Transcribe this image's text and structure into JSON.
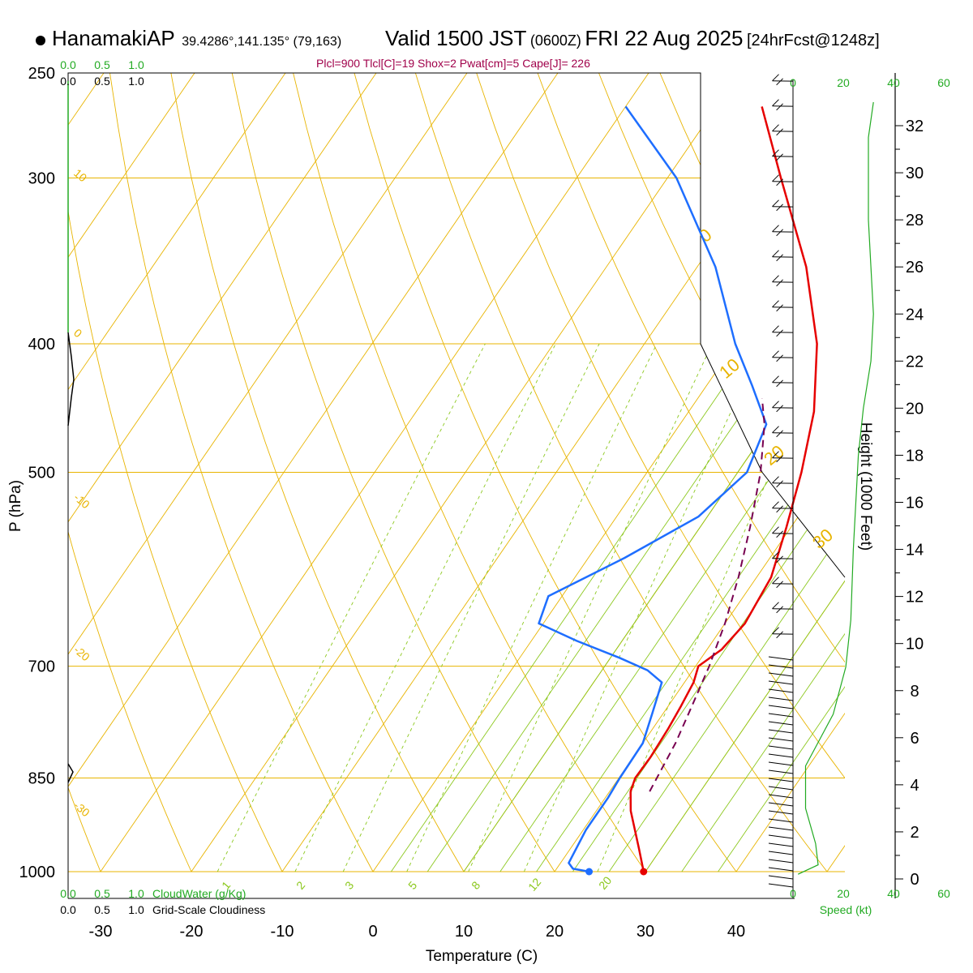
{
  "header": {
    "station": "HanamakiAP",
    "coords": "39.4286°,141.135° (79,163)",
    "valid": "Valid 1500 JST",
    "utc": "(0600Z)",
    "date": "FRI 22 Aug 2025",
    "forecast": "[24hrFcst@1248z]",
    "params": "Plcl=900 Tlcl[C]=19 Shox=2 Pwat[cm]=5 Cape[J]= 226"
  },
  "colors": {
    "isotherm": "#e8b400",
    "dry_adiabat": "#e8b400",
    "moist_adiabat": "#8cc81e",
    "mixing_ratio": "#8cc81e",
    "temperature": "#e60000",
    "dewpoint": "#1e6eff",
    "parcel": "#780050",
    "green_text": "#22aa22",
    "param_text": "#a0004a"
  },
  "chart_data": {
    "type": "skew-t",
    "xlabel": "Temperature (C)",
    "ylabel": "P (hPa)",
    "x_ticks": [
      -30,
      -20,
      -10,
      0,
      10,
      20,
      30,
      40
    ],
    "pressure_levels": [
      250,
      300,
      400,
      500,
      700,
      850,
      1000
    ],
    "temp_range_c": [
      -33,
      47
    ],
    "pressure_range_hpa": [
      250,
      1000
    ],
    "temperature": {
      "name": "Temperature",
      "points": [
        {
          "p": 1000,
          "t": 29.8
        },
        {
          "p": 960,
          "t": 27.5
        },
        {
          "p": 900,
          "t": 23.8
        },
        {
          "p": 870,
          "t": 22.3
        },
        {
          "p": 850,
          "t": 21.8
        },
        {
          "p": 820,
          "t": 21.9
        },
        {
          "p": 780,
          "t": 21.7
        },
        {
          "p": 750,
          "t": 21.4
        },
        {
          "p": 720,
          "t": 21.0
        },
        {
          "p": 700,
          "t": 20.3
        },
        {
          "p": 680,
          "t": 21.6
        },
        {
          "p": 650,
          "t": 22.2
        },
        {
          "p": 600,
          "t": 21.6
        },
        {
          "p": 550,
          "t": 19.5
        },
        {
          "p": 500,
          "t": 17.0
        },
        {
          "p": 450,
          "t": 13.8
        },
        {
          "p": 400,
          "t": 9.0
        },
        {
          "p": 350,
          "t": 2.0
        },
        {
          "p": 300,
          "t": -7.5
        },
        {
          "p": 265,
          "t": -15.0
        }
      ]
    },
    "dewpoint": {
      "name": "Dewpoint",
      "points": [
        {
          "p": 1000,
          "t": 23.8
        },
        {
          "p": 995,
          "t": 21.8
        },
        {
          "p": 985,
          "t": 20.9
        },
        {
          "p": 930,
          "t": 20.3
        },
        {
          "p": 880,
          "t": 20.3
        },
        {
          "p": 850,
          "t": 20.1
        },
        {
          "p": 800,
          "t": 20.0
        },
        {
          "p": 760,
          "t": 18.8
        },
        {
          "p": 720,
          "t": 17.5
        },
        {
          "p": 705,
          "t": 15.0
        },
        {
          "p": 690,
          "t": 11.0
        },
        {
          "p": 670,
          "t": 5.0
        },
        {
          "p": 650,
          "t": -0.5
        },
        {
          "p": 620,
          "t": -1.5
        },
        {
          "p": 580,
          "t": 4.0
        },
        {
          "p": 540,
          "t": 9.0
        },
        {
          "p": 500,
          "t": 11.0
        },
        {
          "p": 460,
          "t": 9.5
        },
        {
          "p": 430,
          "t": 5.0
        },
        {
          "p": 400,
          "t": 0.0
        },
        {
          "p": 350,
          "t": -8.0
        },
        {
          "p": 300,
          "t": -19.0
        },
        {
          "p": 265,
          "t": -30.0
        }
      ]
    },
    "parcel": {
      "name": "Parcel",
      "points": [
        {
          "p": 870,
          "t": 24.4
        },
        {
          "p": 800,
          "t": 23.6
        },
        {
          "p": 750,
          "t": 22.6
        },
        {
          "p": 700,
          "t": 21.5
        },
        {
          "p": 650,
          "t": 20.0
        },
        {
          "p": 600,
          "t": 18.0
        },
        {
          "p": 550,
          "t": 15.5
        },
        {
          "p": 500,
          "t": 12.5
        },
        {
          "p": 460,
          "t": 9.3
        },
        {
          "p": 440,
          "t": 7.1
        }
      ]
    },
    "surface_temp": 29.8,
    "surface_dewpoint": 23.8,
    "isotherm_labels": [
      "10",
      "0",
      "-10",
      "-20",
      "-30"
    ],
    "dry_adiabat_labels": [
      "0",
      "10",
      "20",
      "30"
    ],
    "mixing_ratio_labels": [
      "1",
      "2",
      "3",
      "5",
      "8",
      "12",
      "20"
    ],
    "height_axis": {
      "label": "Height (1000 Feet)",
      "ticks": [
        0,
        2,
        4,
        6,
        8,
        10,
        12,
        14,
        16,
        18,
        20,
        22,
        24,
        26,
        28,
        30,
        32
      ]
    },
    "speed_axis": {
      "label": "Speed (kt)",
      "ticks": [
        0,
        20,
        40,
        60
      ],
      "wind_speed_profile": [
        {
          "h": 0.2,
          "s": 2
        },
        {
          "h": 0.6,
          "s": 10
        },
        {
          "h": 1.5,
          "s": 9
        },
        {
          "h": 3,
          "s": 5
        },
        {
          "h": 4.8,
          "s": 5
        },
        {
          "h": 5.8,
          "s": 10
        },
        {
          "h": 7,
          "s": 16
        },
        {
          "h": 9,
          "s": 21
        },
        {
          "h": 11,
          "s": 23
        },
        {
          "h": 14,
          "s": 24
        },
        {
          "h": 16,
          "s": 25
        },
        {
          "h": 18,
          "s": 26
        },
        {
          "h": 20,
          "s": 28
        },
        {
          "h": 22,
          "s": 31
        },
        {
          "h": 24,
          "s": 32
        },
        {
          "h": 26,
          "s": 31
        },
        {
          "h": 28,
          "s": 30
        },
        {
          "h": 30,
          "s": 30
        },
        {
          "h": 31.5,
          "s": 30
        },
        {
          "h": 33,
          "s": 32
        }
      ]
    },
    "cloud_water": {
      "label": "CloudWater (g/Kg)",
      "ticks": [
        "0.0",
        "0.5",
        "1.0"
      ]
    },
    "cloudiness": {
      "label": "Grid-Scale Cloudiness",
      "ticks": [
        "0.0",
        "0.5",
        "1.0"
      ]
    }
  }
}
